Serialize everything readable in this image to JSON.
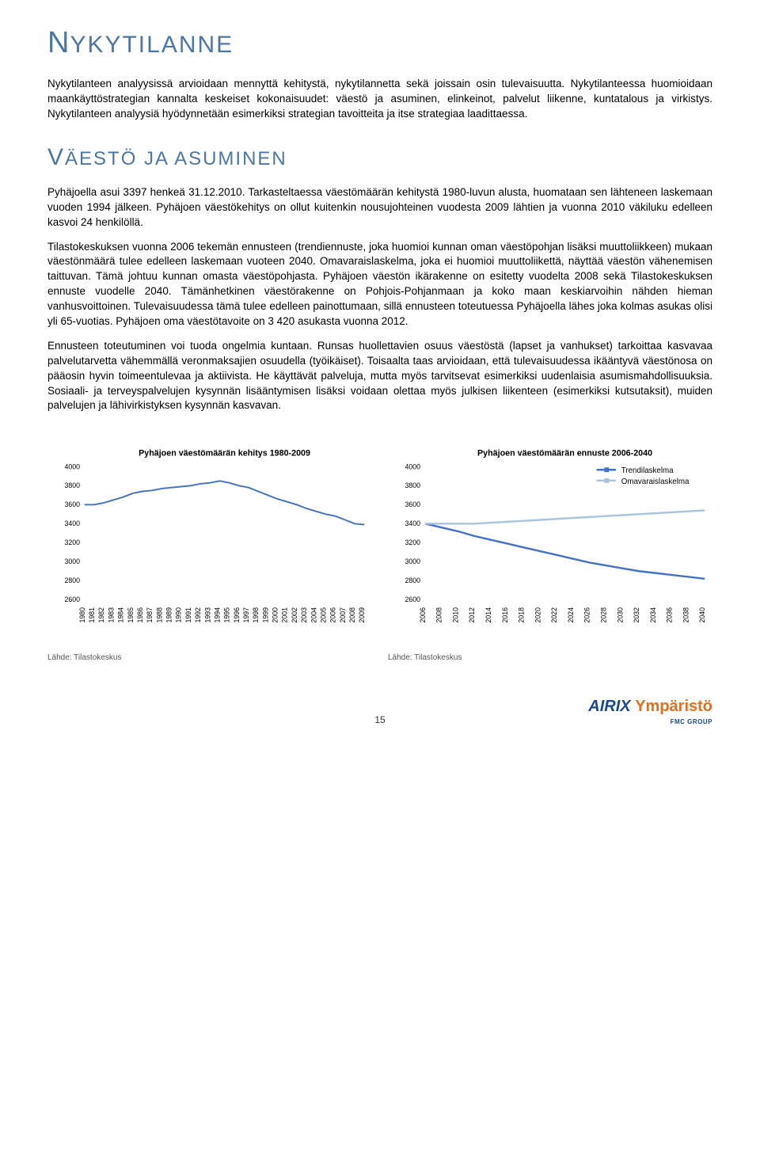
{
  "heading1": {
    "cap": "N",
    "rest": "YKYTILANNE"
  },
  "intro_p1": "Nykytilanteen analyysissä arvioidaan mennyttä kehitystä, nykytilannetta sekä joissain osin tulevaisuutta. Nykytilanteessa huomioidaan maankäyttöstrategian kannalta keskeiset kokonaisuudet: väestö ja asuminen, elinkeinot, palvelut liikenne, kuntatalous ja virkistys. Nykytilanteen analyysiä hyödynnetään esimerkiksi strategian tavoitteita ja itse strategiaa laadittaessa.",
  "heading2": {
    "cap": "V",
    "rest": "ÄESTÖ JA ASUMINEN"
  },
  "body_p1": "Pyhäjoella asui 3397 henkeä 31.12.2010. Tarkasteltaessa väestömäärän kehitystä 1980-luvun alusta, huomataan sen lähteneen laskemaan vuoden 1994 jälkeen. Pyhäjoen väestökehitys on ollut kuitenkin nousujohteinen vuodesta 2009 lähtien ja vuonna 2010 väkiluku edelleen kasvoi 24 henkilöllä.",
  "body_p2": "Tilastokeskuksen vuonna 2006 tekemän ennusteen (trendiennuste, joka huomioi kunnan oman väestöpohjan lisäksi muuttoliikkeen) mukaan väestönmäärä tulee edelleen laskemaan vuoteen 2040. Omavaraislaskelma, joka ei huomioi muuttoliikettä, näyttää väestön vähenemisen taittuvan. Tämä johtuu kunnan omasta väestöpohjasta. Pyhäjoen väestön ikärakenne on esitetty vuodelta 2008 sekä Tilastokeskuksen ennuste vuodelle 2040. Tämänhetkinen väestörakenne on Pohjois-Pohjanmaan ja koko maan keskiarvoihin nähden hieman vanhusvoittoinen. Tulevaisuudessa tämä tulee edelleen painottumaan, sillä ennusteen toteutuessa Pyhäjoella lähes joka kolmas asukas olisi yli 65-vuotias. Pyhäjoen oma väestötavoite on 3 420 asukasta vuonna 2012.",
  "body_p3": "Ennusteen toteutuminen voi tuoda ongelmia kuntaan. Runsas huollettavien osuus väestöstä (lapset ja vanhukset) tarkoittaa kasvavaa palvelutarvetta vähemmällä veronmaksajien osuudella (työikäiset). Toisaalta taas arvioidaan, että tulevaisuudessa ikääntyvä väestönosa on pääosin hyvin toimeentulevaa ja aktiivista. He käyttävät palveluja, mutta myös tarvitsevat esimerkiksi uudenlaisia asumismahdollisuuksia. Sosiaali- ja terveyspalvelujen kysynnän lisääntymisen lisäksi voidaan olettaa myös julkisen liikenteen (esimerkiksi kutsutaksit), muiden palvelujen ja lähivirkistyksen kysynnän kasvavan.",
  "chart1": {
    "type": "line",
    "title": "Pyhäjoen väestömäärän kehitys 1980-2009",
    "years": [
      1980,
      1981,
      1982,
      1983,
      1984,
      1985,
      1986,
      1987,
      1988,
      1989,
      1990,
      1991,
      1992,
      1993,
      1994,
      1995,
      1996,
      1997,
      1998,
      1999,
      2000,
      2001,
      2002,
      2003,
      2004,
      2005,
      2006,
      2007,
      2008,
      2009
    ],
    "values": [
      3600,
      3600,
      3620,
      3650,
      3680,
      3720,
      3740,
      3750,
      3770,
      3780,
      3790,
      3800,
      3820,
      3830,
      3850,
      3830,
      3800,
      3780,
      3740,
      3700,
      3660,
      3630,
      3600,
      3560,
      3530,
      3500,
      3480,
      3440,
      3400,
      3390
    ],
    "ylim": [
      2600,
      4000
    ],
    "ytick_step": 200,
    "line_color": "#4472c4",
    "line_width": 2,
    "background_color": "#ffffff",
    "title_fontsize": 11,
    "label_fontsize": 9,
    "source": "Lähde: Tilastokeskus"
  },
  "chart2": {
    "type": "line",
    "title": "Pyhäjoen väestömäärän ennuste 2006-2040",
    "years": [
      2006,
      2008,
      2010,
      2012,
      2014,
      2016,
      2018,
      2020,
      2022,
      2024,
      2026,
      2028,
      2030,
      2032,
      2034,
      2036,
      2038,
      2040
    ],
    "series": [
      {
        "name": "Trendilaskelma",
        "color": "#4472c4",
        "width": 2.5,
        "values": [
          3400,
          3360,
          3320,
          3270,
          3230,
          3190,
          3150,
          3110,
          3070,
          3030,
          2990,
          2960,
          2930,
          2900,
          2880,
          2860,
          2840,
          2820
        ]
      },
      {
        "name": "Omavaraislaskelma",
        "color": "#a8c4e0",
        "width": 2.5,
        "values": [
          3400,
          3400,
          3400,
          3400,
          3410,
          3420,
          3430,
          3440,
          3450,
          3460,
          3470,
          3480,
          3490,
          3500,
          3510,
          3520,
          3530,
          3540
        ]
      }
    ],
    "ylim": [
      2600,
      4000
    ],
    "ytick_step": 200,
    "background_color": "#ffffff",
    "title_fontsize": 11,
    "label_fontsize": 9,
    "source": "Lähde: Tilastokeskus",
    "legend_position": "top-right"
  },
  "page_number": "15",
  "logo": {
    "part1": "AIRIX ",
    "part2": "Ympäristö",
    "sub": "FMC GROUP"
  }
}
